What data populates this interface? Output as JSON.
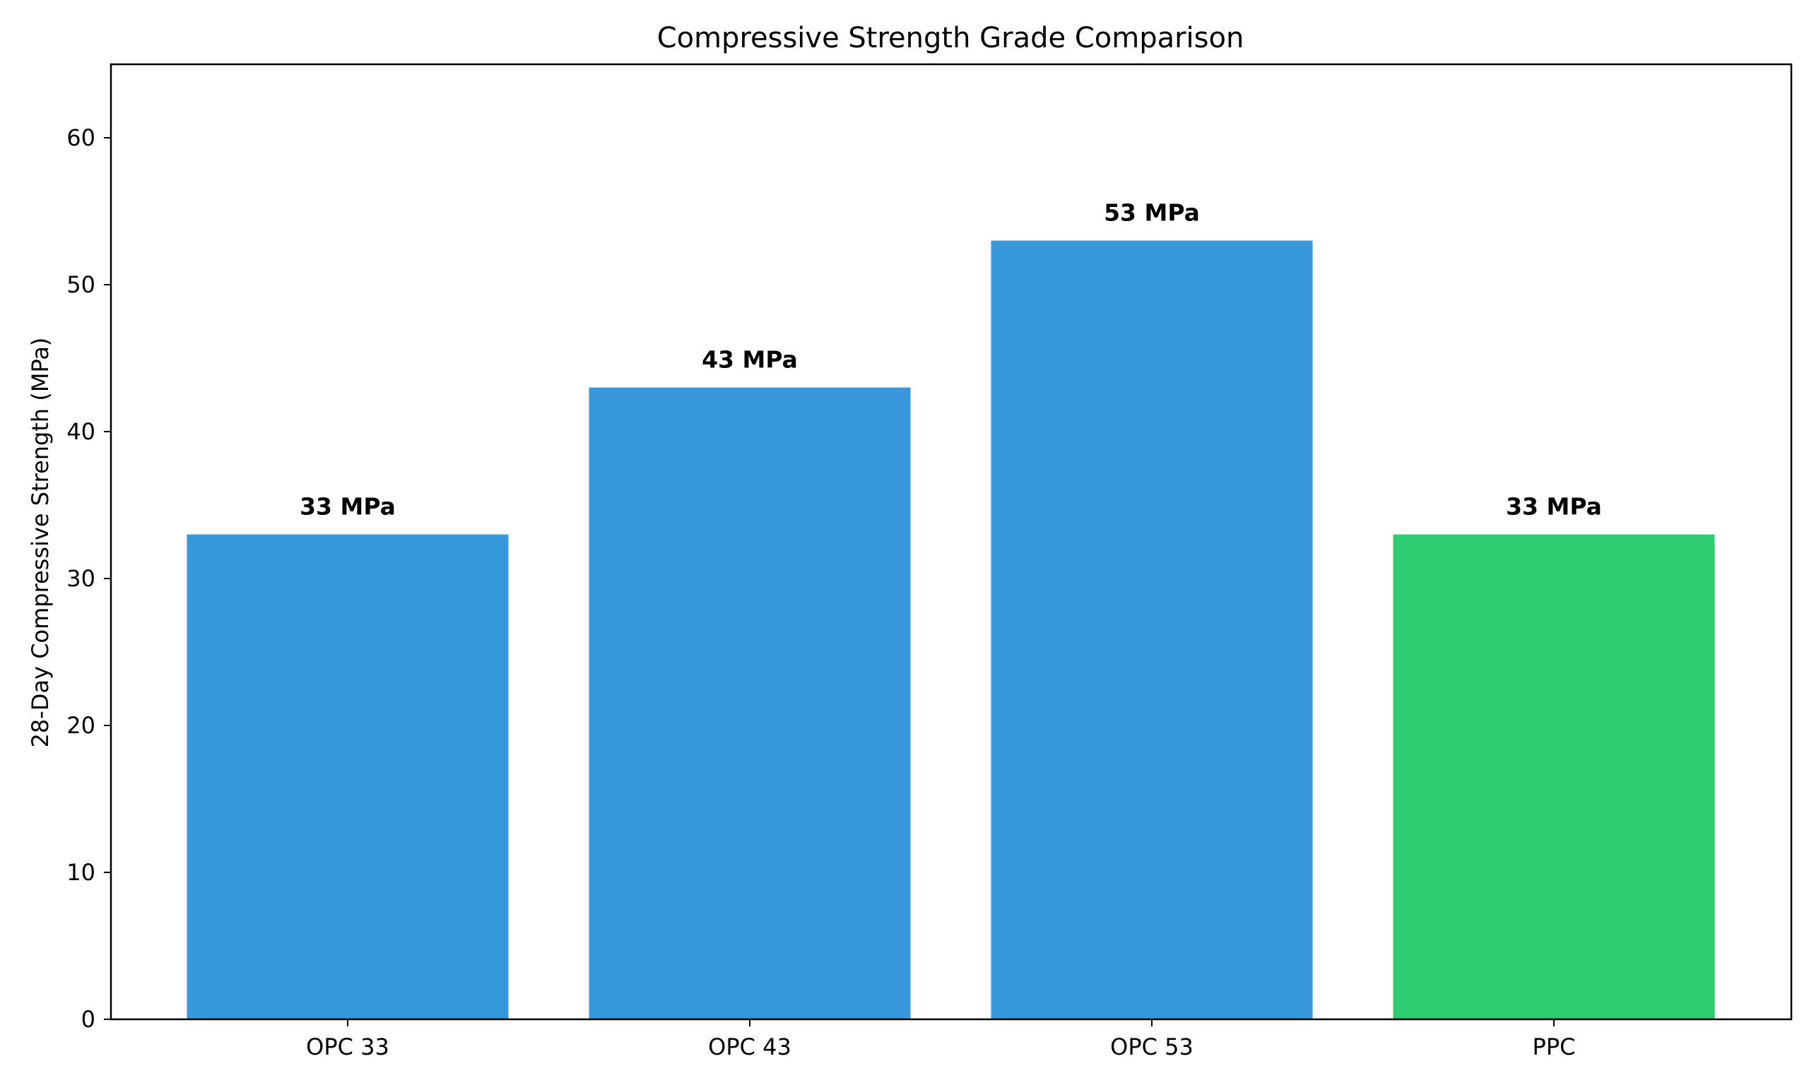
{
  "chart_data": {
    "type": "bar",
    "title": "Compressive Strength Grade Comparison",
    "xlabel": "",
    "ylabel": "28-Day Compressive Strength (MPa)",
    "categories": [
      "OPC 33",
      "OPC 43",
      "OPC 53",
      "PPC"
    ],
    "values": [
      33,
      43,
      53,
      33
    ],
    "data_labels": [
      "33 MPa",
      "43 MPa",
      "53 MPa",
      "33 MPa"
    ],
    "bar_colors": [
      "#3797db",
      "#3797db",
      "#3797db",
      "#2ecc71"
    ],
    "ylim": [
      0,
      65
    ],
    "yticks": [
      0,
      10,
      20,
      30,
      40,
      50,
      60
    ],
    "grid": false,
    "legend": "none"
  }
}
